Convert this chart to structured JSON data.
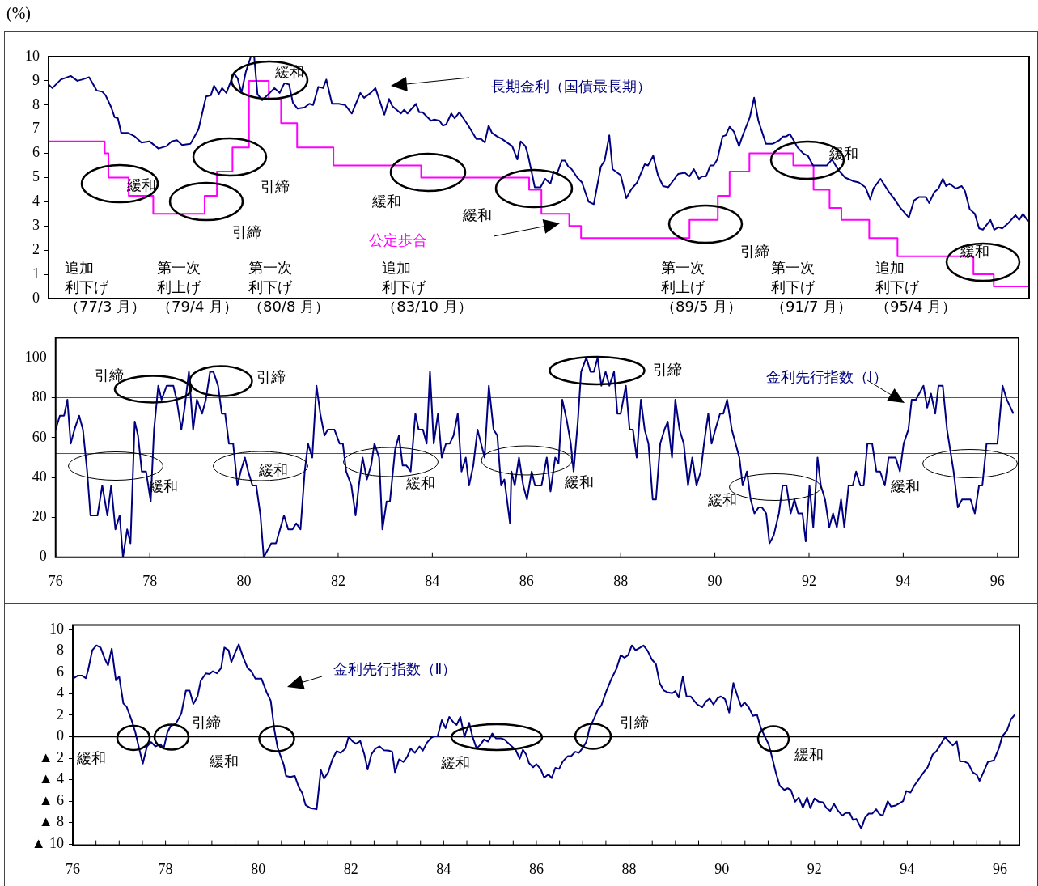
{
  "chart_data": [
    {
      "type": "line",
      "ylabel": "(%)",
      "xlim": [
        75.86,
        96.65
      ],
      "xticks": [
        76,
        78,
        80,
        82,
        84,
        86,
        88,
        90,
        92,
        94,
        96
      ],
      "ylim": [
        0,
        10
      ],
      "yticks": [
        0,
        1,
        2,
        3,
        4,
        5,
        6,
        7,
        8,
        9,
        10
      ],
      "tick_labels": "y",
      "legend": false,
      "series": [
        {
          "name": "長期金利（国債最長期）",
          "color": "#000080",
          "x": [
            75.86,
            75.94,
            76.12,
            76.33,
            76.47,
            76.57,
            76.72,
            76.88,
            77.0,
            77.07,
            77.19,
            77.26,
            77.33,
            77.4,
            77.54,
            77.69,
            77.83,
            78.0,
            78.19,
            78.36,
            78.47,
            78.58,
            78.69,
            78.87,
            79.04,
            79.2,
            79.3,
            79.37,
            79.47,
            79.54,
            79.63,
            79.79,
            79.87,
            79.95,
            80.04,
            80.15,
            80.22,
            80.29,
            80.39,
            80.55,
            80.65,
            80.76,
            80.86,
            80.96,
            81.04,
            81.14,
            81.29,
            81.39,
            81.47,
            81.58,
            81.68,
            81.75,
            81.87,
            82.01,
            82.15,
            82.29,
            82.47,
            82.55,
            82.69,
            82.79,
            82.86,
            82.98,
            83.08,
            83.15,
            83.33,
            83.4,
            83.47,
            83.65,
            83.72,
            83.79,
            83.97,
            84.04,
            84.15,
            84.22,
            84.29,
            84.4,
            84.47,
            84.57,
            84.76,
            84.93,
            85.03,
            85.11,
            85.19,
            85.26,
            85.37,
            85.47,
            85.69,
            85.8,
            85.87,
            85.97,
            86.03,
            86.17,
            86.29,
            86.39,
            86.5,
            86.57,
            86.64,
            86.74,
            86.81,
            86.88,
            86.95,
            87.07,
            87.17,
            87.31,
            87.42,
            87.57,
            87.65,
            87.75,
            87.82,
            87.99,
            88.11,
            88.21,
            88.34,
            88.5,
            88.57,
            88.68,
            88.78,
            88.89,
            89.0,
            89.21,
            89.35,
            89.45,
            89.54,
            89.65,
            89.72,
            89.8,
            89.89,
            89.96,
            90.04,
            90.15,
            90.22,
            90.3,
            90.39,
            90.5,
            90.57,
            90.73,
            90.82,
            90.91,
            91.07,
            91.22,
            91.36,
            91.43,
            91.5,
            91.58,
            91.67,
            91.74,
            91.86,
            91.96,
            92.07,
            92.36,
            92.47,
            92.61,
            92.75,
            92.93,
            93.04,
            93.18,
            93.28,
            93.35,
            93.5,
            93.68,
            93.78,
            93.92,
            94.1,
            94.21,
            94.32,
            94.46,
            94.53,
            94.64,
            94.73,
            94.82,
            94.89,
            94.96,
            95.1,
            95.22,
            95.29,
            95.39,
            95.5,
            95.59,
            95.67,
            95.83,
            95.91,
            96.0,
            96.08,
            96.2,
            96.36,
            96.44,
            96.52,
            96.61,
            96.65
          ],
          "values": [
            8.85,
            8.7,
            9.05,
            9.2,
            9.0,
            9.05,
            9.15,
            8.6,
            8.55,
            8.4,
            7.9,
            7.5,
            7.45,
            6.85,
            6.85,
            6.7,
            6.45,
            6.5,
            6.2,
            6.3,
            6.5,
            6.55,
            6.35,
            6.4,
            7.0,
            8.35,
            8.4,
            8.8,
            8.45,
            8.7,
            8.5,
            9.3,
            9.1,
            8.5,
            9.35,
            10.0,
            10.0,
            8.45,
            8.2,
            8.5,
            8.7,
            8.5,
            8.9,
            8.85,
            8.1,
            7.85,
            7.9,
            8.05,
            8.0,
            8.75,
            8.7,
            9.05,
            8.05,
            8.05,
            8.0,
            7.65,
            8.5,
            8.3,
            8.5,
            8.7,
            8.3,
            7.6,
            8.25,
            7.95,
            7.65,
            7.8,
            7.65,
            8.05,
            7.7,
            7.7,
            7.35,
            7.4,
            7.35,
            7.15,
            7.2,
            7.65,
            7.45,
            7.7,
            7.15,
            6.6,
            6.6,
            6.45,
            7.15,
            6.85,
            6.7,
            6.6,
            6.3,
            5.75,
            6.5,
            6.3,
            5.9,
            4.6,
            4.6,
            4.95,
            4.75,
            5.25,
            5.15,
            5.7,
            5.7,
            5.45,
            5.35,
            5.0,
            4.8,
            4.0,
            3.9,
            5.45,
            5.7,
            6.75,
            5.35,
            5.1,
            4.15,
            4.5,
            4.8,
            5.55,
            5.5,
            5.9,
            5.1,
            4.65,
            4.6,
            5.15,
            5.2,
            5.05,
            5.35,
            4.95,
            5.05,
            5.05,
            5.5,
            5.5,
            5.75,
            6.7,
            6.75,
            7.1,
            6.9,
            6.3,
            6.7,
            7.5,
            8.3,
            7.35,
            6.4,
            6.4,
            6.55,
            6.7,
            6.7,
            6.8,
            6.5,
            6.25,
            6.0,
            5.9,
            5.5,
            5.5,
            5.75,
            5.3,
            5.0,
            4.85,
            4.8,
            4.6,
            4.1,
            4.55,
            4.95,
            4.4,
            4.15,
            3.75,
            3.35,
            4.05,
            4.2,
            4.2,
            3.95,
            4.4,
            4.55,
            4.95,
            4.65,
            4.75,
            4.55,
            4.65,
            4.45,
            3.7,
            3.5,
            2.9,
            2.85,
            3.25,
            2.85,
            2.95,
            2.9,
            3.1,
            3.45,
            3.25,
            3.5,
            3.25,
            3.2
          ]
        },
        {
          "name": "公定歩合",
          "type": "step",
          "color": "#ff00ff",
          "x": [
            75.86,
            77.05,
            77.13,
            77.56,
            78.08,
            79.17,
            79.43,
            79.76,
            80.11,
            80.53,
            80.79,
            81.13,
            81.9,
            83.76,
            86.05,
            86.31,
            86.9,
            87.15,
            89.45,
            90.05,
            90.3,
            90.72,
            91.65,
            92.08,
            92.42,
            92.67,
            93.26,
            93.86,
            95.47,
            95.9,
            96.65
          ],
          "values": [
            6.5,
            6.0,
            5.0,
            4.25,
            3.5,
            4.25,
            5.25,
            6.25,
            9.0,
            8.25,
            7.25,
            6.25,
            5.5,
            5.0,
            4.5,
            3.5,
            3.0,
            2.5,
            3.25,
            4.25,
            5.25,
            6.0,
            5.5,
            4.5,
            3.75,
            3.25,
            2.5,
            1.75,
            1.0,
            0.5,
            0.5
          ]
        }
      ],
      "annotations": [
        "緩和",
        "緩和",
        "引締",
        "引締",
        "緩和",
        "緩和",
        "引締",
        "緩和",
        "緩和",
        "追加利下げ（77/3 月）",
        "第一次利上げ（79/4 月）",
        "第一次利下げ（80/8 月）",
        "追加利下げ（83/10 月）",
        "第一次利上げ（89/5 月）",
        "第一次利下げ（91/7 月）",
        "追加利下げ（95/4 月）"
      ]
    },
    {
      "type": "line",
      "xlim": [
        76,
        96.45
      ],
      "xticks": [
        76,
        78,
        80,
        82,
        84,
        86,
        88,
        90,
        92,
        94,
        96
      ],
      "ylim": [
        0,
        110
      ],
      "yticks": [
        0,
        20,
        40,
        60,
        80,
        100
      ],
      "legend": false,
      "series": [
        {
          "name": "金利先行指数（Ⅰ）",
          "color": "#000080",
          "x": [
            76.0,
            76.09,
            76.18,
            76.25,
            76.32,
            76.4,
            76.5,
            76.58,
            76.67,
            76.74,
            76.89,
            76.99,
            77.1,
            77.18,
            77.27,
            77.36,
            77.43,
            77.52,
            77.59,
            77.68,
            77.75,
            77.83,
            77.92,
            78.02,
            78.09,
            78.18,
            78.25,
            78.36,
            78.5,
            78.57,
            78.67,
            78.74,
            78.83,
            78.92,
            79.0,
            79.11,
            79.19,
            79.28,
            79.35,
            79.45,
            79.53,
            79.6,
            79.68,
            79.77,
            79.86,
            79.93,
            80.02,
            80.09,
            80.18,
            80.26,
            80.35,
            80.42,
            80.58,
            80.68,
            80.85,
            80.94,
            81.03,
            81.11,
            81.2,
            81.29,
            81.36,
            81.45,
            81.54,
            81.62,
            81.71,
            81.78,
            81.92,
            82.03,
            82.1,
            82.17,
            82.28,
            82.37,
            82.44,
            82.52,
            82.61,
            82.7,
            82.77,
            82.87,
            82.94,
            83.03,
            83.1,
            83.21,
            83.29,
            83.37,
            83.45,
            83.54,
            83.64,
            83.71,
            83.8,
            83.88,
            83.95,
            84.03,
            84.12,
            84.2,
            84.29,
            84.37,
            84.45,
            84.54,
            84.62,
            84.71,
            84.78,
            84.87,
            84.96,
            85.11,
            85.2,
            85.3,
            85.38,
            85.46,
            85.53,
            85.65,
            85.68,
            85.75,
            85.84,
            85.93,
            86.01,
            86.11,
            86.18,
            86.32,
            86.43,
            86.51,
            86.61,
            86.68,
            86.76,
            86.86,
            86.94,
            87.0,
            87.09,
            87.16,
            87.27,
            87.36,
            87.43,
            87.51,
            87.59,
            87.68,
            87.76,
            87.86,
            87.93,
            88.0,
            88.11,
            88.19,
            88.26,
            88.34,
            88.43,
            88.51,
            88.59,
            88.68,
            88.75,
            88.84,
            88.93,
            89.0,
            89.09,
            89.16,
            89.25,
            89.34,
            89.43,
            89.52,
            89.61,
            89.7,
            89.77,
            89.86,
            89.93,
            90.01,
            90.11,
            90.18,
            90.26,
            90.36,
            90.44,
            90.52,
            90.59,
            90.68,
            90.76,
            90.84,
            90.93,
            91.0,
            91.09,
            91.16,
            91.25,
            91.36,
            91.44,
            91.52,
            91.61,
            91.69,
            91.77,
            91.86,
            91.93,
            92.01,
            92.09,
            92.18,
            92.25,
            92.34,
            92.43,
            92.51,
            92.59,
            92.68,
            92.75,
            92.84,
            92.93,
            93.0,
            93.09,
            93.16,
            93.24,
            93.34,
            93.43,
            93.51,
            93.61,
            93.69,
            93.84,
            93.93,
            94.01,
            94.11,
            94.18,
            94.27,
            94.43,
            94.51,
            94.59,
            94.68,
            94.75,
            94.84,
            94.93,
            95.07,
            95.16,
            95.25,
            95.43,
            95.52,
            95.61,
            95.68,
            95.77,
            96.0,
            96.11,
            96.2,
            96.34
          ],
          "values": [
            64,
            71,
            71,
            79,
            57,
            64,
            71,
            64,
            43,
            21,
            21,
            36,
            21,
            36,
            14,
            21,
            0,
            14,
            7,
            68,
            61,
            43,
            43,
            28,
            64,
            86,
            79,
            86,
            86,
            79,
            64,
            75,
            93,
            64,
            79,
            72,
            79,
            93,
            93,
            86,
            72,
            72,
            57,
            57,
            36,
            43,
            50,
            43,
            36,
            36,
            21,
            0,
            7,
            7,
            21,
            14,
            14,
            17,
            14,
            43,
            57,
            50,
            86,
            72,
            61,
            64,
            64,
            57,
            57,
            43,
            36,
            21,
            36,
            50,
            39,
            46,
            57,
            50,
            14,
            28,
            28,
            54,
            61,
            46,
            46,
            43,
            72,
            64,
            64,
            57,
            93,
            57,
            72,
            50,
            57,
            57,
            61,
            72,
            43,
            50,
            36,
            46,
            64,
            50,
            86,
            64,
            61,
            36,
            39,
            17,
            43,
            36,
            50,
            36,
            29,
            43,
            36,
            36,
            50,
            33,
            50,
            47,
            79,
            68,
            57,
            43,
            68,
            93,
            100,
            93,
            93,
            100,
            86,
            93,
            86,
            93,
            72,
            72,
            86,
            64,
            64,
            50,
            79,
            64,
            57,
            29,
            29,
            57,
            64,
            68,
            50,
            79,
            64,
            57,
            36,
            50,
            36,
            43,
            57,
            72,
            57,
            64,
            72,
            72,
            79,
            64,
            57,
            50,
            36,
            43,
            29,
            22,
            25,
            25,
            22,
            7,
            11,
            22,
            36,
            36,
            22,
            29,
            22,
            22,
            8,
            36,
            15,
            50,
            36,
            29,
            15,
            22,
            15,
            29,
            15,
            36,
            36,
            43,
            36,
            36,
            57,
            57,
            43,
            43,
            36,
            50,
            50,
            43,
            57,
            64,
            79,
            79,
            86,
            75,
            82,
            72,
            86,
            86,
            64,
            43,
            25,
            29,
            29,
            22,
            36,
            36,
            57,
            57,
            86,
            79,
            72
          ]
        }
      ],
      "ref_lines": [
        {
          "axis": "y",
          "value": 80,
          "color": "#555555"
        },
        {
          "axis": "y",
          "value": 52,
          "color": "#555555"
        }
      ],
      "annotations": [
        "引締",
        "引締",
        "緩和",
        "緩和",
        "緩和",
        "緩和",
        "引締",
        "緩和",
        "緩和"
      ]
    },
    {
      "type": "line",
      "xlim": [
        76,
        96.42
      ],
      "xticks": [
        76,
        {
          "value": 76.5,
          "label": null
        },
        {
          "value": 77,
          "label": null
        },
        {
          "value": 77.5,
          "label": null
        },
        78,
        {
          "value": 78.5,
          "label": null
        },
        {
          "value": 79,
          "label": null
        },
        {
          "value": 79.5,
          "label": null
        },
        80,
        {
          "value": 80.5,
          "label": null
        },
        {
          "value": 81,
          "label": null
        },
        {
          "value": 81.5,
          "label": null
        },
        82,
        {
          "value": 82.5,
          "label": null
        },
        {
          "value": 83,
          "label": null
        },
        {
          "value": 83.5,
          "label": null
        },
        84,
        {
          "value": 84.5,
          "label": null
        },
        {
          "value": 85,
          "label": null
        },
        {
          "value": 85.5,
          "label": null
        },
        86,
        {
          "value": 86.5,
          "label": null
        },
        {
          "value": 87,
          "label": null
        },
        {
          "value": 87.5,
          "label": null
        },
        88,
        {
          "value": 88.5,
          "label": null
        },
        {
          "value": 89,
          "label": null
        },
        {
          "value": 89.5,
          "label": null
        },
        90,
        {
          "value": 90.5,
          "label": null
        },
        {
          "value": 91,
          "label": null
        },
        {
          "value": 91.5,
          "label": null
        },
        92,
        {
          "value": 92.5,
          "label": null
        },
        {
          "value": 93,
          "label": null
        },
        {
          "value": 93.5,
          "label": null
        },
        94,
        {
          "value": 94.5,
          "label": null
        },
        {
          "value": 95,
          "label": null
        },
        {
          "value": 95.5,
          "label": null
        },
        96
      ],
      "ylim": [
        -10.1,
        10.4
      ],
      "yticks": [
        {
          "value": -10,
          "label": "▲ 10"
        },
        {
          "value": -8,
          "label": "▲ 8"
        },
        {
          "value": -6,
          "label": "▲ 6"
        },
        {
          "value": -4,
          "label": "▲ 4"
        },
        {
          "value": -2,
          "label": "▲ 2"
        },
        0,
        2,
        4,
        6,
        8,
        10
      ],
      "legend": false,
      "series": [
        {
          "name": "金利先行指数（Ⅱ）",
          "color": "#000080",
          "x": [
            76.0,
            76.11,
            76.2,
            76.28,
            76.33,
            76.42,
            76.51,
            76.6,
            76.69,
            76.76,
            76.84,
            76.93,
            77.0,
            77.09,
            77.16,
            77.26,
            77.35,
            77.42,
            77.51,
            77.6,
            77.69,
            77.78,
            77.89,
            77.96,
            78.04,
            78.11,
            78.22,
            78.34,
            78.44,
            78.52,
            78.6,
            78.69,
            78.76,
            78.87,
            78.95,
            79.02,
            79.11,
            79.2,
            79.27,
            79.36,
            79.42,
            79.49,
            79.58,
            79.67,
            79.77,
            79.85,
            79.94,
            80.07,
            80.18,
            80.27,
            80.35,
            80.42,
            80.55,
            80.6,
            80.69,
            80.79,
            80.87,
            80.95,
            81.02,
            81.13,
            81.26,
            81.35,
            81.42,
            81.51,
            81.6,
            81.69,
            81.78,
            81.88,
            81.95,
            82.04,
            82.11,
            82.2,
            82.29,
            82.36,
            82.44,
            82.53,
            82.62,
            82.71,
            82.82,
            82.89,
            82.95,
            83.04,
            83.13,
            83.21,
            83.29,
            83.38,
            83.48,
            83.55,
            83.64,
            83.73,
            83.8,
            83.87,
            83.96,
            84.04,
            84.12,
            84.22,
            84.28,
            84.36,
            84.45,
            84.55,
            84.62,
            84.71,
            84.8,
            84.87,
            84.96,
            85.05,
            85.13,
            85.24,
            85.31,
            85.38,
            85.47,
            85.55,
            85.64,
            85.71,
            85.78,
            85.84,
            85.93,
            86.0,
            86.09,
            86.17,
            86.26,
            86.33,
            86.41,
            86.49,
            86.57,
            86.68,
            86.75,
            86.84,
            86.92,
            87.0,
            87.08,
            87.15,
            87.24,
            87.33,
            87.4,
            87.51,
            87.62,
            87.73,
            87.82,
            87.9,
            87.98,
            88.06,
            88.14,
            88.24,
            88.31,
            88.4,
            88.49,
            88.58,
            88.66,
            88.75,
            88.82,
            88.93,
            89.0,
            89.07,
            89.16,
            89.24,
            89.33,
            89.47,
            89.58,
            89.66,
            89.74,
            89.82,
            89.91,
            89.98,
            90.07,
            90.16,
            90.25,
            90.33,
            90.42,
            90.49,
            90.58,
            90.67,
            90.76,
            90.84,
            90.93,
            91.01,
            91.09,
            91.17,
            91.25,
            91.35,
            91.42,
            91.49,
            91.58,
            91.66,
            91.75,
            91.84,
            91.91,
            92.0,
            92.09,
            92.18,
            92.26,
            92.34,
            92.42,
            92.5,
            92.6,
            92.67,
            92.76,
            92.83,
            92.9,
            93.01,
            93.09,
            93.17,
            93.25,
            93.33,
            93.4,
            93.47,
            93.58,
            93.65,
            93.75,
            93.83,
            93.91,
            93.98,
            94.07,
            94.16,
            94.26,
            94.34,
            94.44,
            94.55,
            94.63,
            94.73,
            94.82,
            94.89,
            94.98,
            95.07,
            95.14,
            95.23,
            95.32,
            95.41,
            95.5,
            95.56,
            95.65,
            95.74,
            95.87,
            95.98,
            96.05,
            96.15,
            96.24,
            96.32
          ],
          "values": [
            5.4,
            5.7,
            5.7,
            5.45,
            6.2,
            8.05,
            8.5,
            8.3,
            7.25,
            6.65,
            8.2,
            5.25,
            5.6,
            3.1,
            2.8,
            1.65,
            0.4,
            -0.9,
            -2.5,
            -0.9,
            -0.5,
            -0.9,
            -0.7,
            -1.1,
            0.4,
            1.0,
            1.2,
            2.15,
            4.3,
            4.3,
            3.05,
            3.75,
            5.2,
            5.9,
            5.85,
            6.1,
            5.9,
            6.4,
            8.3,
            8.05,
            6.95,
            7.7,
            8.6,
            7.45,
            6.4,
            6.1,
            5.4,
            5.4,
            4.15,
            3.35,
            0.6,
            -1.05,
            -2.6,
            -3.65,
            -3.75,
            -3.65,
            -4.65,
            -5.25,
            -6.35,
            -6.65,
            -6.75,
            -3.1,
            -3.9,
            -3.3,
            -2.1,
            -1.35,
            -1.5,
            -1.1,
            0.0,
            -0.45,
            -0.65,
            -0.4,
            -1.65,
            -3.05,
            -1.65,
            -1.1,
            -0.9,
            -1.25,
            -1.3,
            -1.4,
            -3.3,
            -2.1,
            -2.35,
            -1.9,
            -1.1,
            -1.5,
            -0.9,
            -1.3,
            -0.55,
            -0.1,
            0.05,
            0.05,
            1.55,
            0.8,
            1.85,
            1.3,
            1.1,
            1.85,
            0.0,
            1.3,
            0.05,
            -1.1,
            -0.7,
            -0.25,
            -0.45,
            0.3,
            -0.15,
            -0.15,
            -0.25,
            -0.55,
            -0.9,
            -1.2,
            -2.05,
            -1.2,
            -1.65,
            -2.45,
            -2.85,
            -2.55,
            -3.0,
            -3.8,
            -3.5,
            -3.85,
            -2.9,
            -3.0,
            -2.3,
            -1.8,
            -1.8,
            -1.4,
            -1.5,
            -1.05,
            -0.45,
            0.85,
            1.65,
            2.55,
            2.9,
            4.25,
            5.4,
            6.35,
            7.6,
            7.35,
            7.6,
            8.5,
            8.05,
            8.3,
            8.5,
            8.0,
            7.2,
            6.75,
            5.0,
            4.3,
            4.15,
            4.05,
            4.25,
            3.65,
            5.6,
            3.75,
            3.75,
            3.0,
            2.75,
            3.3,
            3.55,
            3.0,
            3.6,
            3.75,
            3.5,
            2.25,
            5.0,
            3.9,
            2.8,
            3.2,
            2.75,
            1.95,
            2.05,
            0.85,
            0.0,
            -0.7,
            -2.0,
            -3.4,
            -4.55,
            -4.95,
            -4.8,
            -4.95,
            -6.05,
            -5.65,
            -6.6,
            -5.65,
            -6.65,
            -5.75,
            -6.05,
            -6.1,
            -6.65,
            -6.9,
            -6.25,
            -6.85,
            -7.35,
            -7.1,
            -7.1,
            -7.75,
            -7.65,
            -8.55,
            -7.55,
            -7.15,
            -7.15,
            -6.75,
            -7.2,
            -7.35,
            -6.0,
            -6.5,
            -6.4,
            -6.2,
            -6.0,
            -5.05,
            -5.2,
            -4.5,
            -3.9,
            -3.4,
            -2.85,
            -1.65,
            -1.35,
            -0.65,
            0.0,
            -0.4,
            -0.8,
            -0.45,
            -2.3,
            -2.3,
            -2.5,
            -3.3,
            -3.55,
            -4.1,
            -3.25,
            -2.35,
            -2.2,
            -1.05,
            0.05,
            0.55,
            1.65,
            2.05
          ]
        }
      ],
      "ref_lines": [
        {
          "axis": "y",
          "value": 0,
          "color": "#000000"
        }
      ],
      "annotations": [
        "緩和",
        "引締",
        "緩和",
        "緩和",
        "引締",
        "緩和"
      ]
    }
  ]
}
